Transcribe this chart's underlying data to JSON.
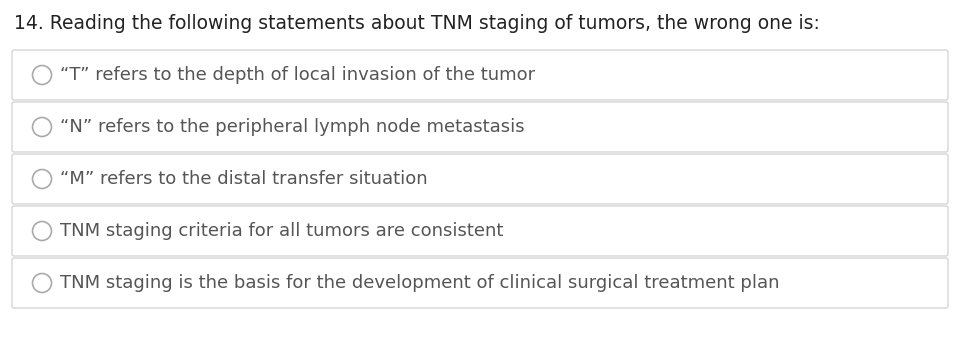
{
  "title": "14. Reading the following statements about TNM staging of tumors, the wrong one is:",
  "options": [
    "“T” refers to the depth of local invasion of the tumor",
    "“N” refers to the peripheral lymph node metastasis",
    "“M” refers to the distal transfer situation",
    "TNM staging criteria for all tumors are consistent",
    "TNM staging is the basis for the development of clinical surgical treatment plan"
  ],
  "background_color": "#ffffff",
  "title_fontsize": 13.5,
  "option_fontsize": 13.0,
  "title_color": "#222222",
  "option_text_color": "#555555",
  "box_edge_color": "#cccccc",
  "circle_edge_color": "#aaaaaa",
  "fig_width": 9.6,
  "fig_height": 3.56,
  "dpi": 100
}
